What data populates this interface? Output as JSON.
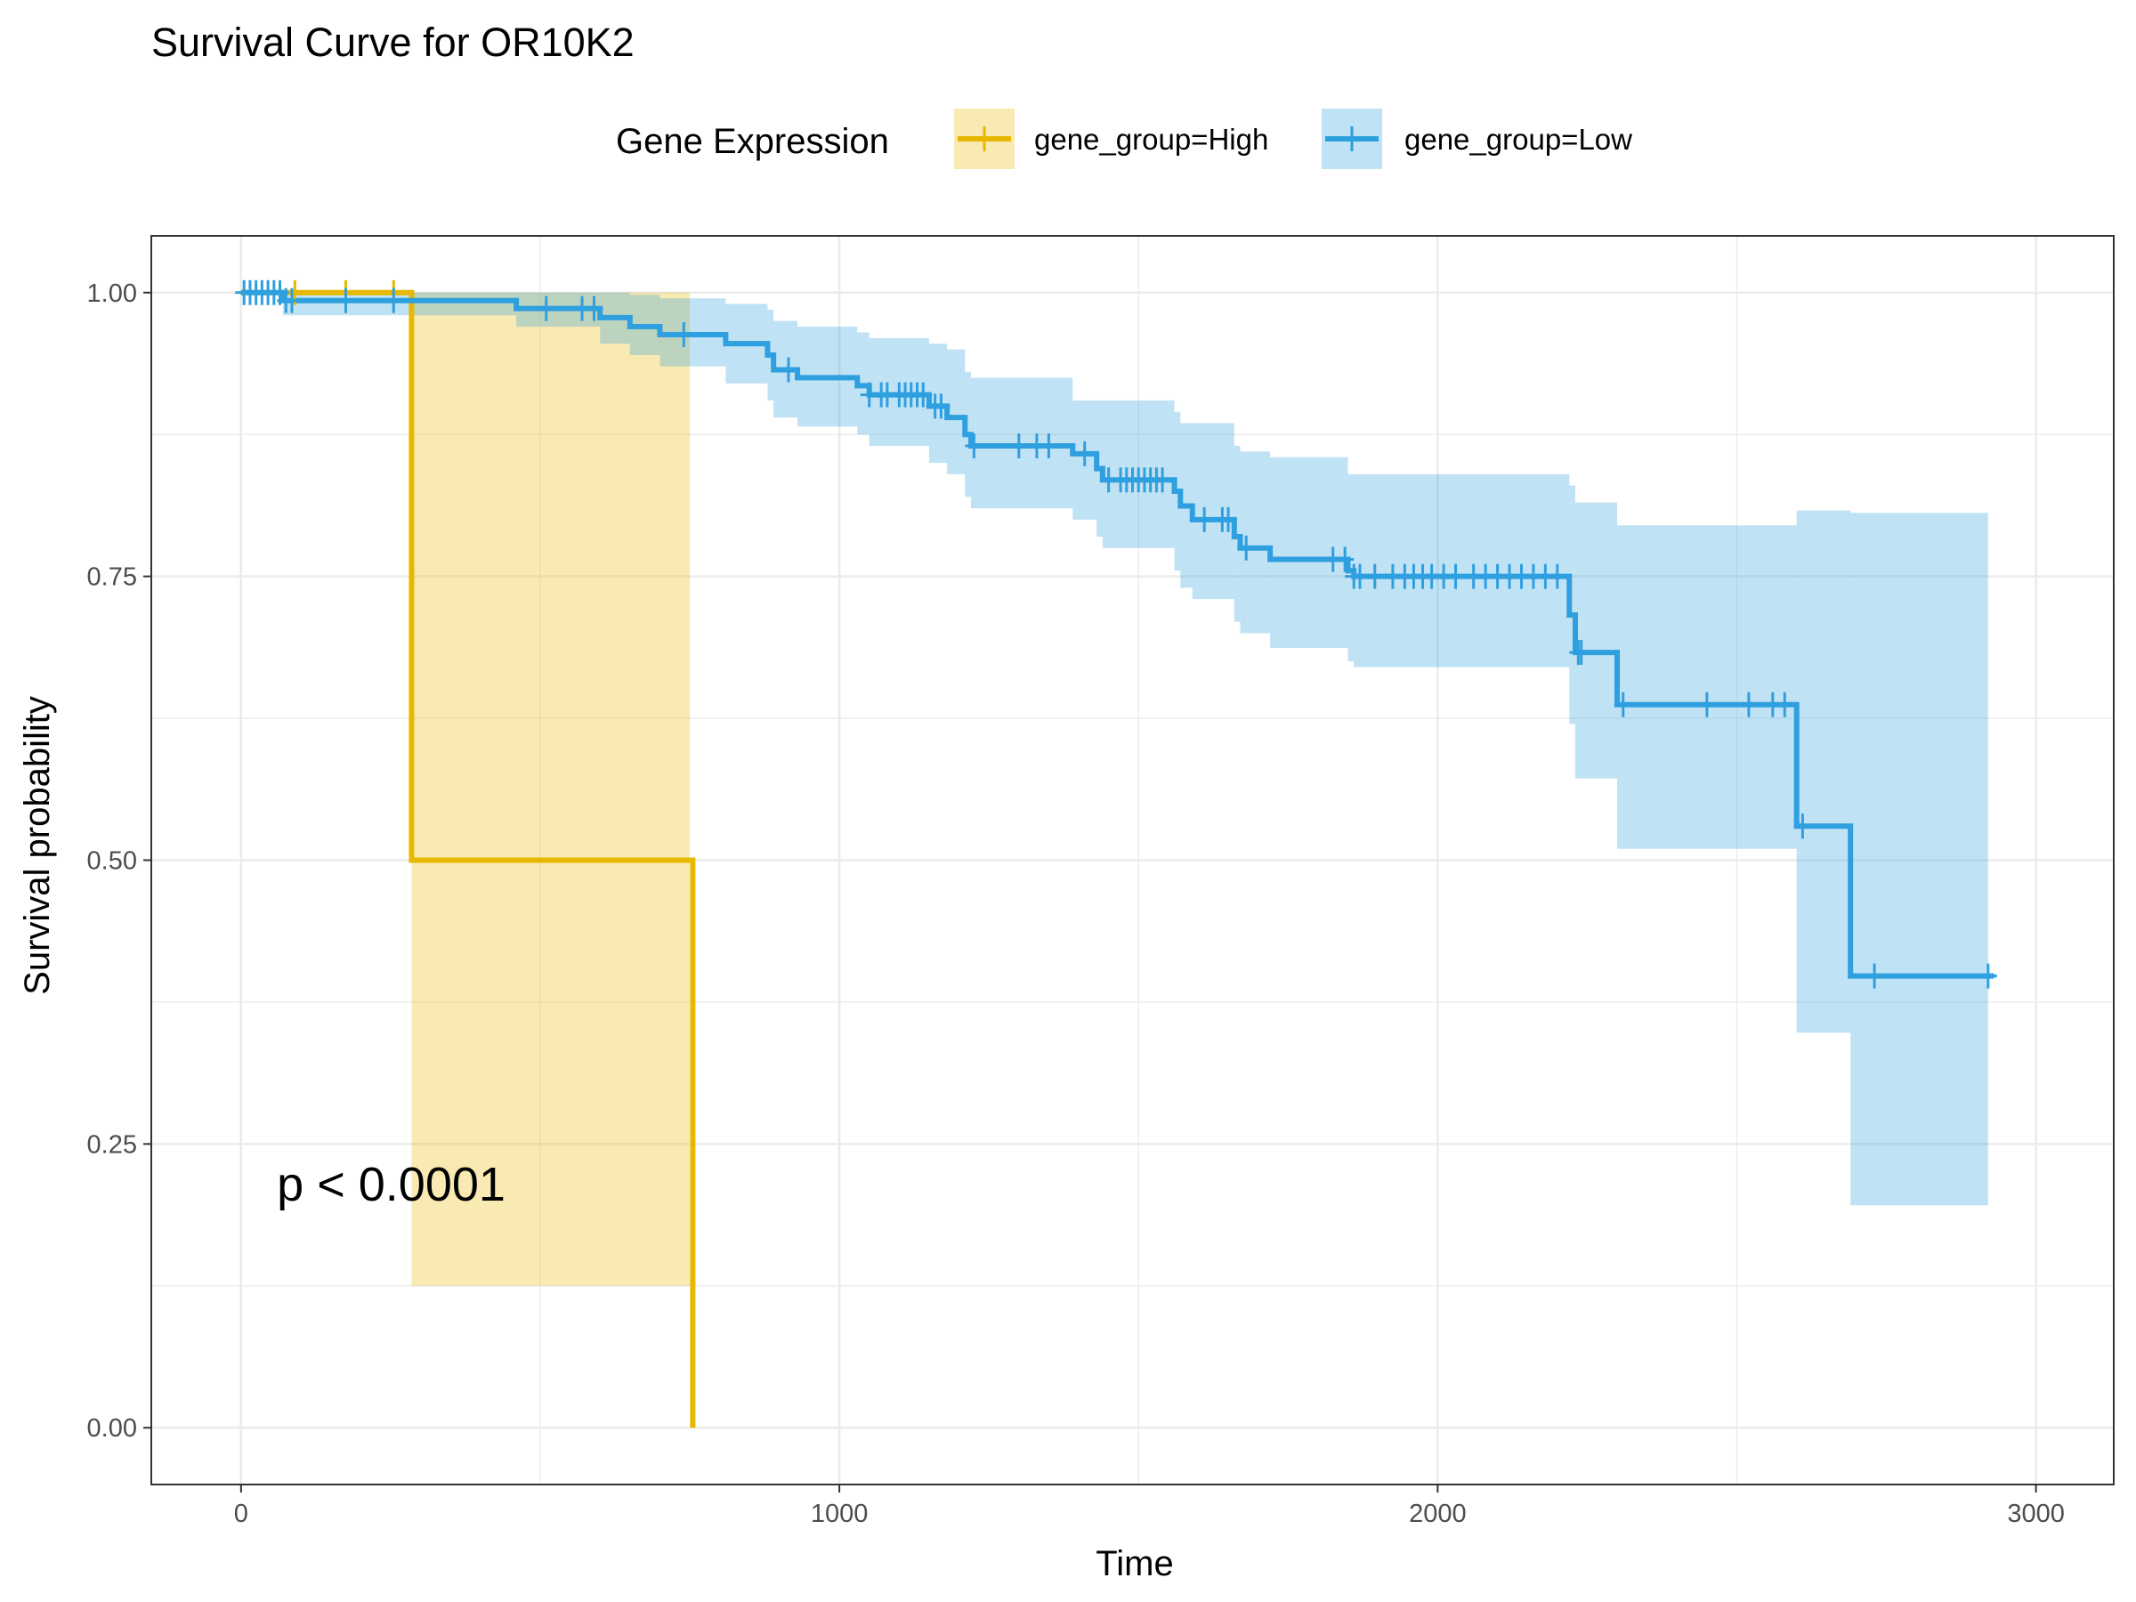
{
  "chart_data": {
    "type": "line",
    "subtype": "kaplan-meier",
    "title": "Survival Curve for OR10K2",
    "xlabel": "Time",
    "ylabel": "Survival probability",
    "xlim": [
      -150,
      3130
    ],
    "ylim": [
      -0.05,
      1.05
    ],
    "x_ticks": [
      0,
      1000,
      2000,
      3000
    ],
    "x_tick_labels": [
      "0",
      "1000",
      "2000",
      "3000"
    ],
    "y_ticks": [
      0,
      0.25,
      0.5,
      0.75,
      1
    ],
    "y_tick_labels": [
      "0.00",
      "0.25",
      "0.50",
      "0.75",
      "1.00"
    ],
    "grid": true,
    "legend": {
      "title": "Gene Expression",
      "position": "top"
    },
    "annotation": {
      "text": "p < 0.0001",
      "x": 60,
      "y": 0.2
    },
    "series": [
      {
        "name": "gene_group=High",
        "color": "#E7B800",
        "steps": [
          [
            0,
            1.0
          ],
          [
            285,
            0.5
          ],
          [
            755,
            0.0
          ]
        ],
        "end_x": 755,
        "ci": [
          {
            "x0": 285,
            "x1": 750,
            "lower": 0.125,
            "upper": 1.0
          }
        ],
        "censor": [
          90,
          175,
          255
        ]
      },
      {
        "name": "gene_group=Low",
        "color": "#2E9FDF",
        "steps": [
          [
            0,
            1.0
          ],
          [
            70,
            0.993
          ],
          [
            460,
            0.986
          ],
          [
            600,
            0.978
          ],
          [
            650,
            0.97
          ],
          [
            700,
            0.963
          ],
          [
            810,
            0.955
          ],
          [
            880,
            0.945
          ],
          [
            890,
            0.932
          ],
          [
            930,
            0.925
          ],
          [
            1030,
            0.918
          ],
          [
            1050,
            0.91
          ],
          [
            1150,
            0.9
          ],
          [
            1180,
            0.89
          ],
          [
            1210,
            0.875
          ],
          [
            1220,
            0.865
          ],
          [
            1390,
            0.858
          ],
          [
            1430,
            0.845
          ],
          [
            1440,
            0.835
          ],
          [
            1560,
            0.825
          ],
          [
            1570,
            0.812
          ],
          [
            1590,
            0.8
          ],
          [
            1660,
            0.785
          ],
          [
            1670,
            0.775
          ],
          [
            1720,
            0.765
          ],
          [
            1850,
            0.755
          ],
          [
            1860,
            0.75
          ],
          [
            2220,
            0.716
          ],
          [
            2230,
            0.683
          ],
          [
            2300,
            0.637
          ],
          [
            2600,
            0.53
          ],
          [
            2690,
            0.398
          ]
        ],
        "end_x": 2930,
        "ci": [
          {
            "x0": 70,
            "x1": 460,
            "lower": 0.98,
            "upper": 1.0
          },
          {
            "x0": 460,
            "x1": 600,
            "lower": 0.97,
            "upper": 1.0
          },
          {
            "x0": 600,
            "x1": 650,
            "lower": 0.955,
            "upper": 1.0
          },
          {
            "x0": 650,
            "x1": 700,
            "lower": 0.945,
            "upper": 0.998
          },
          {
            "x0": 700,
            "x1": 810,
            "lower": 0.935,
            "upper": 0.995
          },
          {
            "x0": 810,
            "x1": 880,
            "lower": 0.92,
            "upper": 0.99
          },
          {
            "x0": 880,
            "x1": 890,
            "lower": 0.905,
            "upper": 0.985
          },
          {
            "x0": 890,
            "x1": 930,
            "lower": 0.89,
            "upper": 0.975
          },
          {
            "x0": 930,
            "x1": 1030,
            "lower": 0.882,
            "upper": 0.97
          },
          {
            "x0": 1030,
            "x1": 1050,
            "lower": 0.875,
            "upper": 0.965
          },
          {
            "x0": 1050,
            "x1": 1150,
            "lower": 0.865,
            "upper": 0.96
          },
          {
            "x0": 1150,
            "x1": 1180,
            "lower": 0.85,
            "upper": 0.955
          },
          {
            "x0": 1180,
            "x1": 1210,
            "lower": 0.84,
            "upper": 0.95
          },
          {
            "x0": 1210,
            "x1": 1220,
            "lower": 0.82,
            "upper": 0.93
          },
          {
            "x0": 1220,
            "x1": 1390,
            "lower": 0.81,
            "upper": 0.925
          },
          {
            "x0": 1390,
            "x1": 1430,
            "lower": 0.8,
            "upper": 0.905
          },
          {
            "x0": 1430,
            "x1": 1440,
            "lower": 0.785,
            "upper": 0.905
          },
          {
            "x0": 1440,
            "x1": 1560,
            "lower": 0.775,
            "upper": 0.905
          },
          {
            "x0": 1560,
            "x1": 1570,
            "lower": 0.755,
            "upper": 0.895
          },
          {
            "x0": 1570,
            "x1": 1590,
            "lower": 0.74,
            "upper": 0.885
          },
          {
            "x0": 1590,
            "x1": 1660,
            "lower": 0.73,
            "upper": 0.885
          },
          {
            "x0": 1660,
            "x1": 1670,
            "lower": 0.71,
            "upper": 0.865
          },
          {
            "x0": 1670,
            "x1": 1720,
            "lower": 0.7,
            "upper": 0.86
          },
          {
            "x0": 1720,
            "x1": 1850,
            "lower": 0.687,
            "upper": 0.855
          },
          {
            "x0": 1850,
            "x1": 1860,
            "lower": 0.675,
            "upper": 0.84
          },
          {
            "x0": 1860,
            "x1": 2220,
            "lower": 0.67,
            "upper": 0.84
          },
          {
            "x0": 2220,
            "x1": 2230,
            "lower": 0.62,
            "upper": 0.83
          },
          {
            "x0": 2230,
            "x1": 2300,
            "lower": 0.572,
            "upper": 0.815
          },
          {
            "x0": 2300,
            "x1": 2600,
            "lower": 0.51,
            "upper": 0.795
          },
          {
            "x0": 2600,
            "x1": 2690,
            "lower": 0.348,
            "upper": 0.808
          },
          {
            "x0": 2690,
            "x1": 2920,
            "lower": 0.196,
            "upper": 0.806
          }
        ],
        "censor": [
          5,
          15,
          25,
          35,
          45,
          55,
          65,
          75,
          85,
          175,
          255,
          510,
          570,
          590,
          740,
          915,
          1050,
          1070,
          1080,
          1100,
          1110,
          1120,
          1130,
          1140,
          1160,
          1170,
          1225,
          1300,
          1330,
          1350,
          1410,
          1450,
          1470,
          1480,
          1490,
          1500,
          1510,
          1520,
          1530,
          1540,
          1610,
          1640,
          1650,
          1680,
          1825,
          1845,
          1860,
          1870,
          1895,
          1925,
          1945,
          1960,
          1975,
          1990,
          2010,
          2030,
          2060,
          2080,
          2100,
          2120,
          2140,
          2160,
          2180,
          2200,
          2235,
          2240,
          2310,
          2450,
          2520,
          2560,
          2580,
          2610,
          2730,
          2920
        ]
      }
    ]
  }
}
